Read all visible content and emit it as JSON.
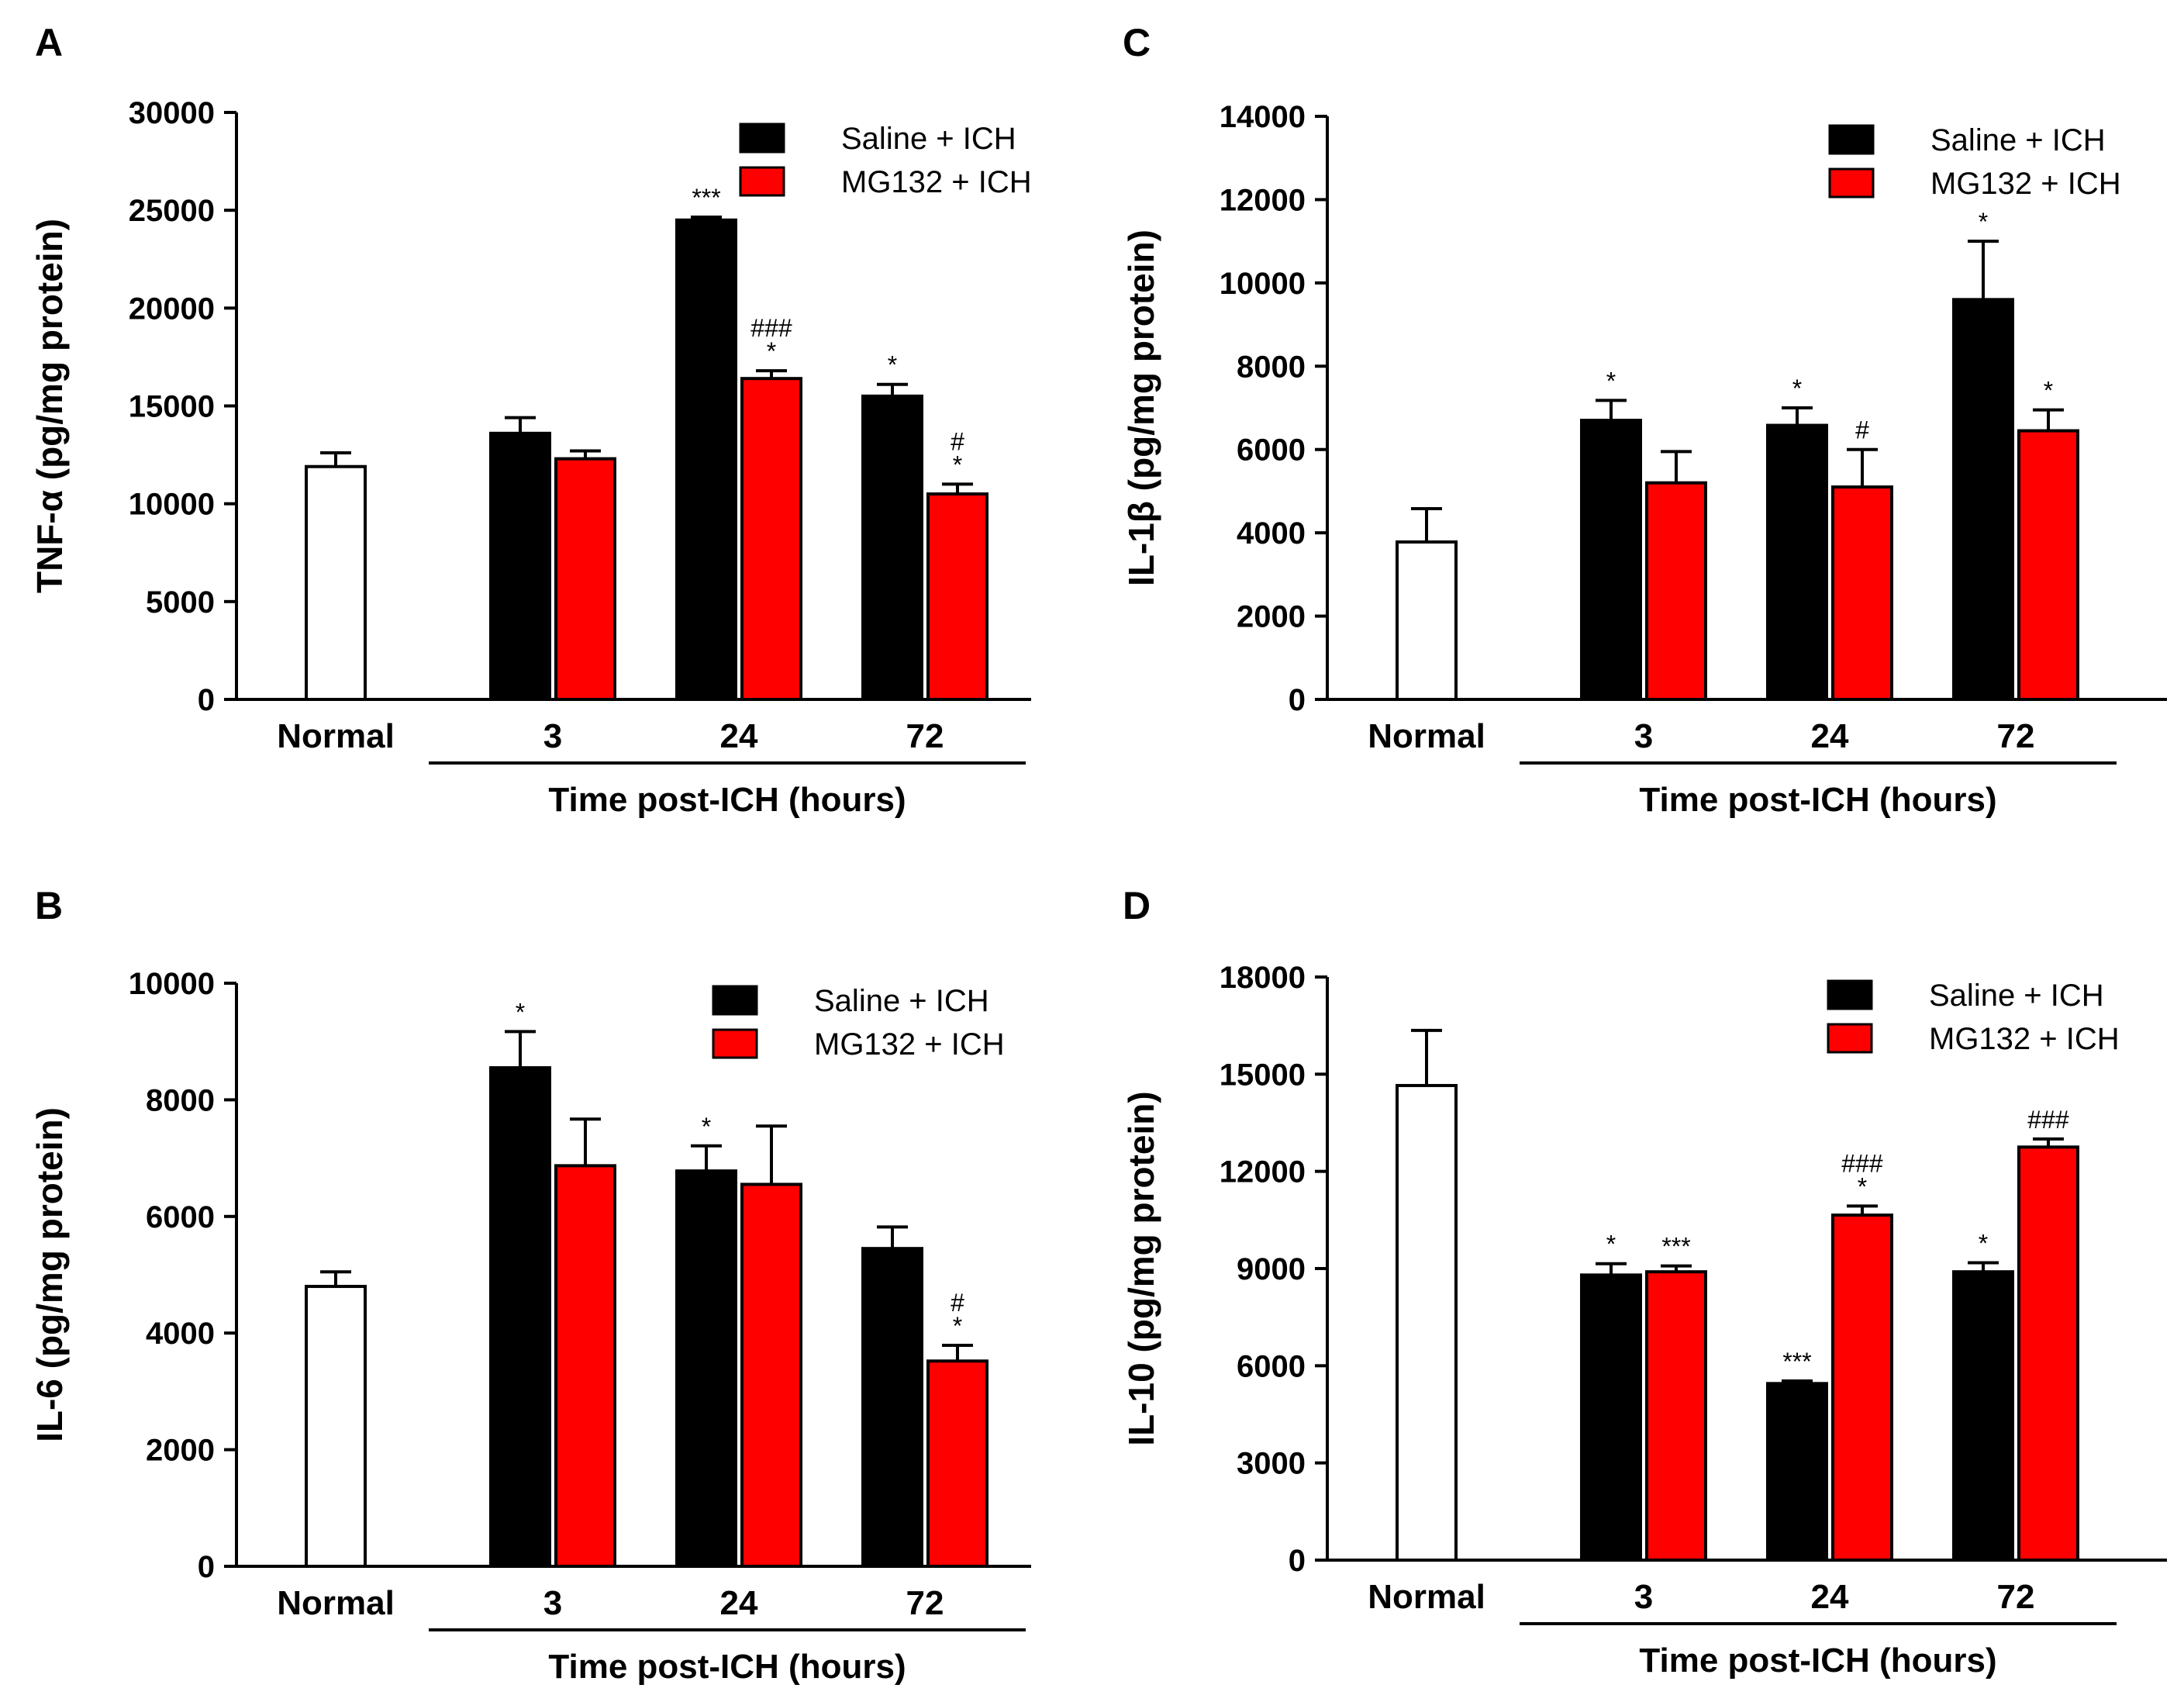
{
  "chart_data": [
    {
      "panel": "A",
      "type": "bar",
      "ylabel": "TNF-α (pg/mg protein)",
      "ylim": [
        0,
        30000
      ],
      "yticks": [
        0,
        5000,
        10000,
        15000,
        20000,
        25000,
        30000
      ],
      "xlabel": "Time post-ICH (hours)",
      "normal": {
        "label": "Normal",
        "value": 11900,
        "error": 700
      },
      "categories": [
        "3",
        "24",
        "72"
      ],
      "series": [
        {
          "name": "Saline + ICH",
          "color": "#000000",
          "values": [
            13600,
            24500,
            15500
          ],
          "errors": [
            800,
            150,
            600
          ],
          "annotations": [
            "",
            "***",
            "*"
          ]
        },
        {
          "name": "MG132 + ICH",
          "color": "#ff0000",
          "values": [
            12300,
            16400,
            10500
          ],
          "errors": [
            400,
            400,
            500
          ],
          "annotations": [
            "",
            "###\n*",
            "#\n*"
          ]
        }
      ]
    },
    {
      "panel": "B",
      "type": "bar",
      "ylabel": "IL-6 (pg/mg protein)",
      "ylim": [
        0,
        10000
      ],
      "yticks": [
        0,
        2000,
        4000,
        6000,
        8000,
        10000
      ],
      "xlabel": "Time post-ICH (hours)",
      "normal": {
        "label": "Normal",
        "value": 4800,
        "error": 250
      },
      "categories": [
        "3",
        "24",
        "72"
      ],
      "series": [
        {
          "name": "Saline + ICH",
          "color": "#000000",
          "values": [
            8550,
            6780,
            5450
          ],
          "errors": [
            620,
            430,
            370
          ],
          "annotations": [
            "*",
            "*",
            ""
          ]
        },
        {
          "name": "MG132 + ICH",
          "color": "#ff0000",
          "values": [
            6870,
            6550,
            3520
          ],
          "errors": [
            800,
            1000,
            270
          ],
          "annotations": [
            "",
            "",
            "#\n*"
          ]
        }
      ]
    },
    {
      "panel": "C",
      "type": "bar",
      "ylabel": "IL-1β (pg/mg protein)",
      "ylim": [
        0,
        14000
      ],
      "yticks": [
        0,
        2000,
        4000,
        6000,
        8000,
        10000,
        12000,
        14000
      ],
      "xlabel": "Time post-ICH (hours)",
      "normal": {
        "label": "Normal",
        "value": 3780,
        "error": 800
      },
      "categories": [
        "3",
        "24",
        "72"
      ],
      "series": [
        {
          "name": "Saline + ICH",
          "color": "#000000",
          "values": [
            6700,
            6580,
            9600
          ],
          "errors": [
            480,
            420,
            1400
          ],
          "annotations": [
            "*",
            "*",
            "*"
          ]
        },
        {
          "name": "MG132 + ICH",
          "color": "#ff0000",
          "values": [
            5200,
            5100,
            6450
          ],
          "errors": [
            750,
            900,
            500
          ],
          "annotations": [
            "",
            "#",
            "*"
          ]
        }
      ]
    },
    {
      "panel": "D",
      "type": "bar",
      "ylabel": "IL-10 (pg/mg protein)",
      "ylim": [
        0,
        18000
      ],
      "yticks": [
        0,
        3000,
        6000,
        9000,
        12000,
        15000,
        18000
      ],
      "xlabel": "Time post-ICH (hours)",
      "normal": {
        "label": "Normal",
        "value": 14650,
        "error": 1700
      },
      "categories": [
        "3",
        "24",
        "72"
      ],
      "series": [
        {
          "name": "Saline + ICH",
          "color": "#000000",
          "values": [
            8800,
            5450,
            8900
          ],
          "errors": [
            350,
            80,
            280
          ],
          "annotations": [
            "*",
            "***",
            "*"
          ]
        },
        {
          "name": "MG132 + ICH",
          "color": "#ff0000",
          "values": [
            8900,
            10650,
            12750
          ],
          "errors": [
            180,
            280,
            250
          ],
          "annotations": [
            "***",
            "###\n*",
            "###"
          ]
        }
      ]
    }
  ]
}
